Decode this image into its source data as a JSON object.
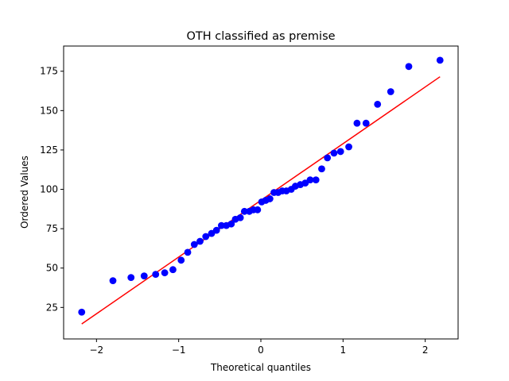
{
  "chart_data": {
    "type": "scatter",
    "title": "OTH classified as premise",
    "xlabel": "Theoretical quantiles",
    "ylabel": "Ordered Values",
    "xlim": [
      -2.4,
      2.4
    ],
    "ylim": [
      5,
      191
    ],
    "xticks": [
      -2,
      -1,
      0,
      1,
      2
    ],
    "xtick_labels": [
      "−2",
      "−1",
      "0",
      "1",
      "2"
    ],
    "yticks": [
      25,
      50,
      75,
      100,
      125,
      150,
      175
    ],
    "ytick_labels": [
      "25",
      "50",
      "75",
      "100",
      "125",
      "150",
      "175"
    ],
    "grid": false,
    "legend": "none",
    "colors": {
      "points": "#0000ff",
      "line": "#ff0000"
    },
    "series": [
      {
        "kind": "points",
        "points": [
          [
            -2.18,
            22
          ],
          [
            -1.8,
            42
          ],
          [
            -1.58,
            44
          ],
          [
            -1.42,
            45
          ],
          [
            -1.28,
            46
          ],
          [
            -1.17,
            47
          ],
          [
            -1.07,
            49
          ],
          [
            -0.97,
            55
          ],
          [
            -0.89,
            60
          ],
          [
            -0.81,
            65
          ],
          [
            -0.74,
            67
          ],
          [
            -0.67,
            70
          ],
          [
            -0.6,
            72
          ],
          [
            -0.54,
            74
          ],
          [
            -0.48,
            77
          ],
          [
            -0.42,
            77
          ],
          [
            -0.36,
            78
          ],
          [
            -0.31,
            81
          ],
          [
            -0.25,
            82
          ],
          [
            -0.2,
            86
          ],
          [
            -0.14,
            86
          ],
          [
            -0.09,
            87
          ],
          [
            -0.04,
            87
          ],
          [
            0.01,
            92
          ],
          [
            0.06,
            93
          ],
          [
            0.11,
            94
          ],
          [
            0.16,
            98
          ],
          [
            0.21,
            98
          ],
          [
            0.26,
            99
          ],
          [
            0.31,
            99
          ],
          [
            0.37,
            100
          ],
          [
            0.42,
            102
          ],
          [
            0.48,
            103
          ],
          [
            0.54,
            104
          ],
          [
            0.6,
            106
          ],
          [
            0.67,
            106
          ],
          [
            0.74,
            113
          ],
          [
            0.81,
            120
          ],
          [
            0.89,
            123
          ],
          [
            0.97,
            124
          ],
          [
            1.07,
            127
          ],
          [
            1.17,
            142
          ],
          [
            1.28,
            142
          ],
          [
            1.42,
            154
          ],
          [
            1.58,
            162
          ],
          [
            1.8,
            178
          ],
          [
            2.18,
            182
          ]
        ]
      },
      {
        "kind": "line",
        "points": [
          [
            -2.18,
            14.5
          ],
          [
            2.18,
            171.5
          ]
        ]
      }
    ]
  }
}
